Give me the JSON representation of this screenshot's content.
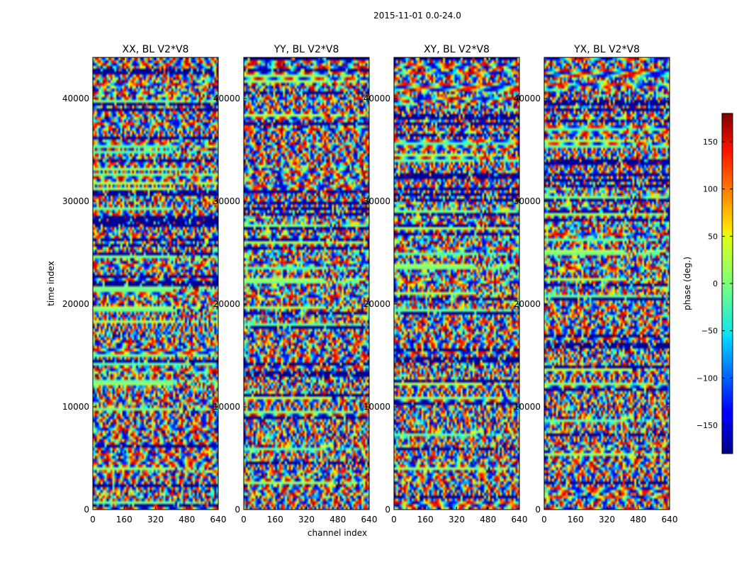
{
  "chart_data": {
    "type": "heatmap",
    "suptitle": "2015-11-01 0.0-24.0",
    "xlabel": "channel index",
    "ylabel": "time index",
    "xlim": [
      0,
      640
    ],
    "ylim": [
      0,
      44000
    ],
    "xticks": [
      0,
      160,
      320,
      480,
      640
    ],
    "yticks": [
      0,
      10000,
      20000,
      30000,
      40000
    ],
    "panels": [
      {
        "title": "XX, BL V2*V8",
        "ytick_labels": [
          "0",
          "10000",
          "20000",
          "30000",
          "40000"
        ]
      },
      {
        "title": "YY, BL V2*V8",
        "ytick_labels": [
          "0",
          "10000",
          "20000",
          "30000",
          "40000"
        ]
      },
      {
        "title": "XY, BL V2*V8",
        "ytick_labels": [
          "0",
          "10000",
          "20000",
          "30000",
          "40000"
        ]
      },
      {
        "title": "YX, BL V2*V8",
        "ytick_labels": [
          "0",
          "10000",
          "20000",
          "30000",
          "40000"
        ]
      }
    ],
    "colorbar": {
      "label": "phase (deg.)",
      "range": [
        -180,
        180
      ],
      "ticks": [
        -150,
        -100,
        -50,
        0,
        50,
        100,
        150
      ],
      "tick_labels": [
        "−150",
        "−100",
        "−50",
        "0",
        "50",
        "100",
        "150"
      ],
      "colormap": "jet"
    }
  }
}
